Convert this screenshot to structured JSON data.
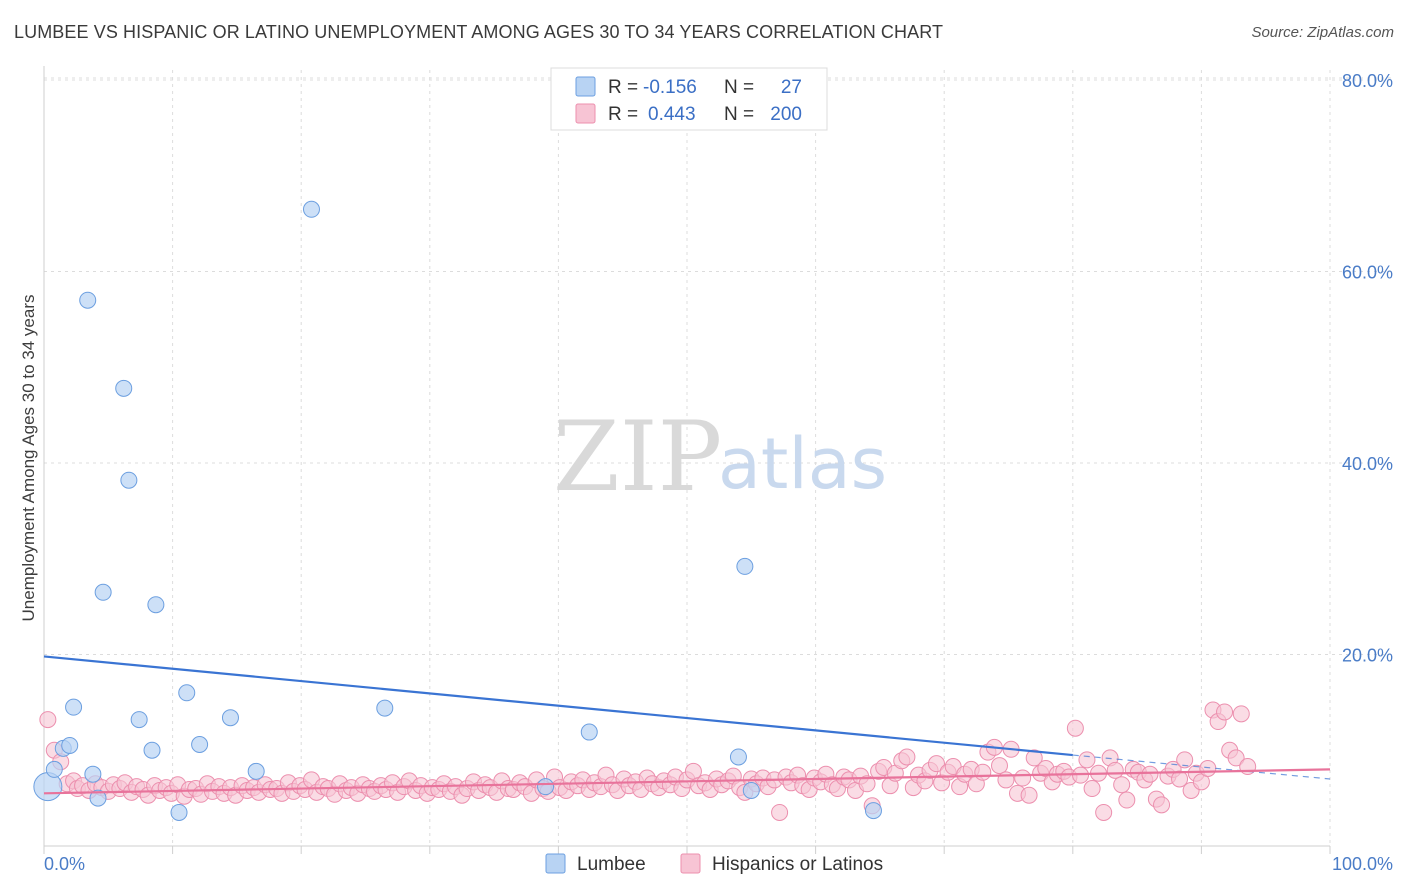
{
  "title": "LUMBEE VS HISPANIC OR LATINO UNEMPLOYMENT AMONG AGES 30 TO 34 YEARS CORRELATION CHART",
  "source": "Source: ZipAtlas.com",
  "watermark": {
    "zip": "ZIP",
    "atlas": "atlas"
  },
  "colors": {
    "lumbee_fill": "#b8d3f3",
    "lumbee_stroke": "#6c9fe0",
    "lumbee_line": "#3a74d3",
    "hisp_fill": "#f7c4d4",
    "hisp_stroke": "#ec8fae",
    "hisp_line": "#e8739b",
    "grid": "#dcdcdc",
    "tick_text": "#4a7cc7"
  },
  "legend": {
    "rows": [
      {
        "r_label": "R = ",
        "r_value": "-0.156",
        "n_label": "N = ",
        "n_value": "27"
      },
      {
        "r_label": "R = ",
        "r_value": "0.443",
        "n_label": "N = ",
        "n_value": "200"
      }
    ]
  },
  "chart_data": {
    "type": "scatter",
    "title": "LUMBEE VS HISPANIC OR LATINO UNEMPLOYMENT AMONG AGES 30 TO 34 YEARS CORRELATION CHART",
    "xlabel": "",
    "ylabel": "Unemployment Among Ages 30 to 34 years",
    "xlim": [
      0,
      100
    ],
    "ylim": [
      0,
      80
    ],
    "x_tick_labels": [
      "0.0%",
      "100.0%"
    ],
    "y_ticks": [
      20,
      40,
      60,
      80
    ],
    "y_tick_labels": [
      "20.0%",
      "40.0%",
      "60.0%",
      "80.0%"
    ],
    "grid": true,
    "legend_position": "top-center",
    "series": [
      {
        "name": "Lumbee",
        "points": [
          [
            0.3,
            6.2
          ],
          [
            0.8,
            8.0
          ],
          [
            1.5,
            10.2
          ],
          [
            2.0,
            10.5
          ],
          [
            2.3,
            14.5
          ],
          [
            3.4,
            57.0
          ],
          [
            3.8,
            7.5
          ],
          [
            4.2,
            5.0
          ],
          [
            4.6,
            26.5
          ],
          [
            6.2,
            47.8
          ],
          [
            6.6,
            38.2
          ],
          [
            7.4,
            13.2
          ],
          [
            8.4,
            10.0
          ],
          [
            8.7,
            25.2
          ],
          [
            10.5,
            3.5
          ],
          [
            11.1,
            16.0
          ],
          [
            12.1,
            10.6
          ],
          [
            14.5,
            13.4
          ],
          [
            16.5,
            7.8
          ],
          [
            20.8,
            66.5
          ],
          [
            26.5,
            14.4
          ],
          [
            39.0,
            6.2
          ],
          [
            42.4,
            11.9
          ],
          [
            54.0,
            9.3
          ],
          [
            54.5,
            29.2
          ],
          [
            55.0,
            5.8
          ],
          [
            64.5,
            3.7
          ]
        ],
        "trend": {
          "x": [
            0,
            80
          ],
          "y": [
            19.8,
            9.5
          ],
          "dashed_extension": {
            "x": [
              80,
              100
            ],
            "y": [
              9.5,
              7.0
            ]
          }
        }
      },
      {
        "name": "Hispanics or Latinos",
        "points": [
          [
            0.3,
            13.2
          ],
          [
            0.8,
            10.0
          ],
          [
            1.3,
            8.8
          ],
          [
            1.8,
            6.5
          ],
          [
            2.3,
            6.8
          ],
          [
            2.6,
            6.0
          ],
          [
            3.0,
            6.3
          ],
          [
            3.5,
            5.8
          ],
          [
            4.0,
            6.5
          ],
          [
            4.5,
            6.1
          ],
          [
            5.0,
            5.7
          ],
          [
            5.4,
            6.4
          ],
          [
            5.9,
            6.0
          ],
          [
            6.3,
            6.6
          ],
          [
            6.8,
            5.6
          ],
          [
            7.2,
            6.2
          ],
          [
            7.7,
            5.9
          ],
          [
            8.1,
            5.3
          ],
          [
            8.6,
            6.3
          ],
          [
            9.0,
            5.8
          ],
          [
            9.5,
            6.1
          ],
          [
            9.9,
            5.5
          ],
          [
            10.4,
            6.4
          ],
          [
            10.9,
            5.2
          ],
          [
            11.3,
            5.9
          ],
          [
            11.8,
            6.0
          ],
          [
            12.2,
            5.4
          ],
          [
            12.7,
            6.5
          ],
          [
            13.1,
            5.7
          ],
          [
            13.6,
            6.2
          ],
          [
            14.0,
            5.5
          ],
          [
            14.5,
            6.1
          ],
          [
            14.9,
            5.3
          ],
          [
            15.4,
            6.3
          ],
          [
            15.8,
            5.8
          ],
          [
            16.3,
            6.1
          ],
          [
            16.7,
            5.6
          ],
          [
            17.2,
            6.4
          ],
          [
            17.6,
            5.9
          ],
          [
            18.1,
            6.0
          ],
          [
            18.5,
            5.5
          ],
          [
            19.0,
            6.6
          ],
          [
            19.4,
            5.7
          ],
          [
            19.9,
            6.3
          ],
          [
            20.3,
            5.9
          ],
          [
            20.8,
            6.9
          ],
          [
            21.2,
            5.6
          ],
          [
            21.7,
            6.2
          ],
          [
            22.1,
            6.0
          ],
          [
            22.6,
            5.4
          ],
          [
            23.0,
            6.5
          ],
          [
            23.5,
            5.8
          ],
          [
            23.9,
            6.1
          ],
          [
            24.4,
            5.5
          ],
          [
            24.8,
            6.4
          ],
          [
            25.3,
            6.0
          ],
          [
            25.7,
            5.7
          ],
          [
            26.2,
            6.3
          ],
          [
            26.6,
            5.9
          ],
          [
            27.1,
            6.6
          ],
          [
            27.5,
            5.6
          ],
          [
            28.0,
            6.2
          ],
          [
            28.4,
            6.8
          ],
          [
            28.9,
            5.8
          ],
          [
            29.3,
            6.3
          ],
          [
            29.8,
            5.5
          ],
          [
            30.2,
            6.1
          ],
          [
            30.7,
            5.9
          ],
          [
            31.1,
            6.5
          ],
          [
            31.6,
            5.7
          ],
          [
            32.0,
            6.2
          ],
          [
            32.5,
            5.3
          ],
          [
            32.9,
            6.0
          ],
          [
            33.4,
            6.7
          ],
          [
            33.8,
            5.8
          ],
          [
            34.3,
            6.4
          ],
          [
            34.7,
            6.1
          ],
          [
            35.2,
            5.6
          ],
          [
            35.6,
            6.8
          ],
          [
            36.1,
            6.0
          ],
          [
            36.5,
            5.9
          ],
          [
            37.0,
            6.6
          ],
          [
            37.4,
            6.2
          ],
          [
            37.9,
            5.5
          ],
          [
            38.3,
            6.9
          ],
          [
            38.8,
            6.0
          ],
          [
            39.2,
            5.7
          ],
          [
            39.7,
            7.2
          ],
          [
            40.1,
            6.1
          ],
          [
            40.6,
            5.8
          ],
          [
            41.0,
            6.7
          ],
          [
            41.5,
            6.3
          ],
          [
            41.9,
            6.9
          ],
          [
            42.4,
            5.9
          ],
          [
            42.8,
            6.6
          ],
          [
            43.3,
            6.2
          ],
          [
            43.7,
            7.4
          ],
          [
            44.2,
            6.4
          ],
          [
            44.6,
            5.8
          ],
          [
            45.1,
            7.0
          ],
          [
            45.5,
            6.3
          ],
          [
            46.0,
            6.7
          ],
          [
            46.4,
            5.9
          ],
          [
            46.9,
            7.1
          ],
          [
            47.3,
            6.5
          ],
          [
            47.8,
            6.1
          ],
          [
            48.2,
            6.8
          ],
          [
            48.7,
            6.4
          ],
          [
            49.1,
            7.2
          ],
          [
            49.6,
            6.0
          ],
          [
            50.0,
            6.9
          ],
          [
            50.5,
            7.8
          ],
          [
            50.9,
            6.3
          ],
          [
            51.4,
            6.6
          ],
          [
            51.8,
            5.9
          ],
          [
            52.3,
            7.0
          ],
          [
            52.7,
            6.4
          ],
          [
            53.2,
            6.8
          ],
          [
            53.6,
            7.3
          ],
          [
            54.1,
            6.1
          ],
          [
            54.5,
            5.6
          ],
          [
            55.0,
            7.0
          ],
          [
            55.4,
            6.5
          ],
          [
            55.9,
            7.1
          ],
          [
            56.3,
            6.2
          ],
          [
            56.8,
            6.9
          ],
          [
            57.2,
            3.5
          ],
          [
            57.7,
            7.2
          ],
          [
            58.1,
            6.6
          ],
          [
            58.6,
            7.4
          ],
          [
            59.0,
            6.3
          ],
          [
            59.5,
            5.9
          ],
          [
            59.9,
            7.1
          ],
          [
            60.4,
            6.7
          ],
          [
            60.8,
            7.5
          ],
          [
            61.3,
            6.4
          ],
          [
            61.7,
            6.0
          ],
          [
            62.2,
            7.2
          ],
          [
            62.6,
            6.9
          ],
          [
            63.1,
            5.8
          ],
          [
            63.5,
            7.3
          ],
          [
            64.0,
            6.5
          ],
          [
            64.4,
            4.2
          ],
          [
            64.9,
            7.8
          ],
          [
            65.3,
            8.2
          ],
          [
            65.8,
            6.3
          ],
          [
            66.2,
            7.6
          ],
          [
            66.7,
            8.9
          ],
          [
            67.1,
            9.3
          ],
          [
            67.6,
            6.1
          ],
          [
            68.0,
            7.4
          ],
          [
            68.5,
            6.8
          ],
          [
            68.9,
            7.9
          ],
          [
            69.4,
            8.6
          ],
          [
            69.8,
            6.6
          ],
          [
            70.3,
            7.7
          ],
          [
            70.7,
            8.3
          ],
          [
            71.2,
            6.2
          ],
          [
            71.6,
            7.5
          ],
          [
            72.1,
            8.0
          ],
          [
            72.5,
            6.5
          ],
          [
            73.0,
            7.7
          ],
          [
            73.4,
            9.8
          ],
          [
            73.9,
            10.3
          ],
          [
            74.3,
            8.4
          ],
          [
            74.8,
            6.9
          ],
          [
            75.2,
            10.1
          ],
          [
            75.7,
            5.5
          ],
          [
            76.1,
            7.1
          ],
          [
            76.6,
            5.3
          ],
          [
            77.0,
            9.2
          ],
          [
            77.5,
            7.6
          ],
          [
            77.9,
            8.1
          ],
          [
            78.4,
            6.7
          ],
          [
            78.8,
            7.5
          ],
          [
            79.3,
            7.8
          ],
          [
            79.7,
            7.2
          ],
          [
            80.2,
            12.3
          ],
          [
            80.6,
            7.4
          ],
          [
            81.1,
            9.0
          ],
          [
            81.5,
            6.0
          ],
          [
            82.0,
            7.6
          ],
          [
            82.4,
            3.5
          ],
          [
            82.9,
            9.2
          ],
          [
            83.3,
            7.9
          ],
          [
            83.8,
            6.4
          ],
          [
            84.2,
            4.8
          ],
          [
            84.7,
            8.0
          ],
          [
            85.1,
            7.7
          ],
          [
            85.6,
            6.9
          ],
          [
            86.0,
            7.5
          ],
          [
            86.5,
            4.9
          ],
          [
            86.9,
            4.3
          ],
          [
            87.4,
            7.3
          ],
          [
            87.8,
            8.0
          ],
          [
            88.3,
            7.0
          ],
          [
            88.7,
            9.0
          ],
          [
            89.2,
            5.8
          ],
          [
            89.6,
            7.6
          ],
          [
            90.0,
            6.7
          ],
          [
            90.5,
            8.1
          ],
          [
            90.9,
            14.2
          ],
          [
            91.3,
            13.0
          ],
          [
            91.8,
            14.0
          ],
          [
            92.2,
            10.0
          ],
          [
            92.7,
            9.2
          ],
          [
            93.1,
            13.8
          ],
          [
            93.6,
            8.3
          ]
        ],
        "trend": {
          "x": [
            0,
            100
          ],
          "y": [
            5.5,
            8.0
          ]
        }
      }
    ]
  }
}
